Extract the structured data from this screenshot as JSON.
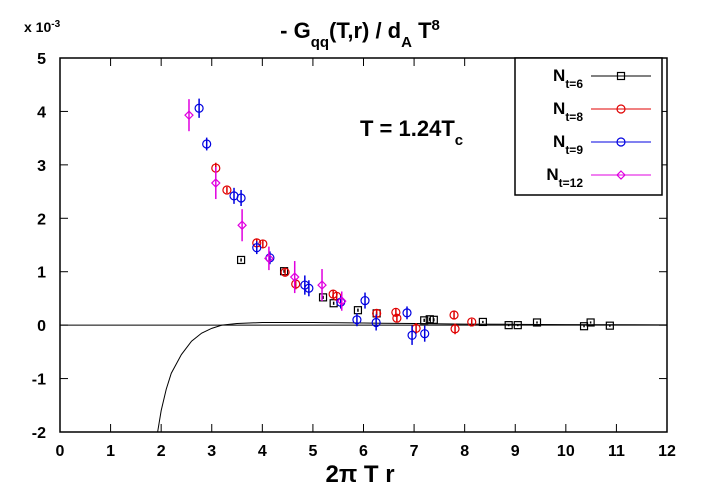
{
  "chart_data": {
    "type": "scatter",
    "title": [
      {
        "text": "- G"
      },
      {
        "text": "qq",
        "shift": "sub"
      },
      {
        "text": "(T,r) / d"
      },
      {
        "text": "A",
        "shift": "sub"
      },
      {
        "text": " T"
      },
      {
        "text": "8",
        "shift": "super"
      }
    ],
    "y_multiplier": [
      {
        "text": "x 10"
      },
      {
        "text": "-3",
        "shift": "super"
      }
    ],
    "annotation": [
      {
        "text": "T = 1.24T"
      },
      {
        "text": "c",
        "shift": "sub"
      }
    ],
    "x_label": [
      {
        "text": "2π T r"
      }
    ],
    "xlim": [
      0,
      12
    ],
    "xticks": [
      0,
      1,
      2,
      3,
      4,
      5,
      6,
      7,
      8,
      9,
      10,
      11,
      12
    ],
    "ylim": [
      -2,
      5
    ],
    "yticks": [
      -2,
      -1,
      0,
      1,
      2,
      3,
      4,
      5
    ],
    "legend": "top-right",
    "series": [
      {
        "name": [
          {
            "text": "N"
          },
          {
            "text": "t=6",
            "shift": "sub"
          }
        ],
        "color": "#000000",
        "marker": "square",
        "x": [
          3.58,
          4.43,
          5.2,
          5.41,
          5.89,
          6.26,
          7.2,
          7.31,
          7.39,
          8.36,
          8.87,
          9.05,
          9.43,
          10.36,
          10.49,
          10.87
        ],
        "values": [
          1.22,
          1.01,
          0.52,
          0.41,
          0.28,
          0.22,
          0.09,
          0.11,
          0.1,
          0.06,
          0.0,
          0.0,
          0.05,
          -0.02,
          0.05,
          -0.01
        ],
        "errors": [
          0.03,
          0.03,
          0.03,
          0.03,
          0.03,
          0.03,
          0.03,
          0.03,
          0.03,
          0.02,
          0.02,
          0.02,
          0.02,
          0.02,
          0.02,
          0.02
        ]
      },
      {
        "name": [
          {
            "text": "N"
          },
          {
            "text": "t=8",
            "shift": "sub"
          }
        ],
        "color": "#e00000",
        "marker": "circle",
        "x": [
          3.08,
          3.3,
          3.89,
          4.01,
          4.45,
          4.66,
          5.4,
          5.47,
          6.26,
          6.64,
          6.66,
          7.04,
          7.79,
          7.81,
          8.14
        ],
        "values": [
          2.94,
          2.53,
          1.54,
          1.52,
          0.99,
          0.77,
          0.58,
          0.54,
          0.22,
          0.24,
          0.13,
          -0.06,
          0.19,
          -0.07,
          0.06
        ],
        "errors": [
          0.1,
          0.06,
          0.08,
          0.08,
          0.07,
          0.1,
          0.08,
          0.08,
          0.08,
          0.08,
          0.08,
          0.1,
          0.08,
          0.1,
          0.06
        ]
      },
      {
        "name": [
          {
            "text": "N"
          },
          {
            "text": "t=9",
            "shift": "sub"
          }
        ],
        "color": "#0000e0",
        "marker": "circle",
        "x": [
          2.75,
          2.9,
          3.44,
          3.58,
          3.89,
          4.15,
          4.84,
          4.92,
          5.55,
          5.87,
          6.03,
          6.25,
          6.86,
          6.96,
          7.21
        ],
        "values": [
          4.06,
          3.39,
          2.42,
          2.38,
          1.45,
          1.26,
          0.75,
          0.69,
          0.43,
          0.1,
          0.46,
          0.05,
          0.23,
          -0.19,
          -0.16
        ],
        "errors": [
          0.18,
          0.12,
          0.15,
          0.15,
          0.12,
          0.12,
          0.18,
          0.15,
          0.12,
          0.12,
          0.15,
          0.15,
          0.12,
          0.18,
          0.15
        ]
      },
      {
        "name": [
          {
            "text": "N"
          },
          {
            "text": "t=12",
            "shift": "sub"
          }
        ],
        "color": "#e000e0",
        "marker": "diamond",
        "x": [
          2.55,
          3.08,
          3.6,
          4.13,
          4.64,
          5.18,
          5.57
        ],
        "values": [
          3.93,
          2.66,
          1.87,
          1.25,
          0.9,
          0.75,
          0.45
        ],
        "errors": [
          0.3,
          0.3,
          0.3,
          0.22,
          0.3,
          0.3,
          0.18
        ]
      }
    ],
    "curve": {
      "color": "#000000",
      "x": [
        1.93,
        2.0,
        2.1,
        2.2,
        2.4,
        2.6,
        2.8,
        3.0,
        3.2,
        3.5,
        4.0,
        5.0,
        6.0,
        7.0,
        8.0,
        9.0,
        10.0,
        12.0
      ],
      "values": [
        -2.0,
        -1.6,
        -1.2,
        -0.9,
        -0.55,
        -0.3,
        -0.15,
        -0.06,
        0.0,
        0.03,
        0.05,
        0.05,
        0.04,
        0.03,
        0.02,
        0.015,
        0.01,
        0.005
      ]
    }
  }
}
